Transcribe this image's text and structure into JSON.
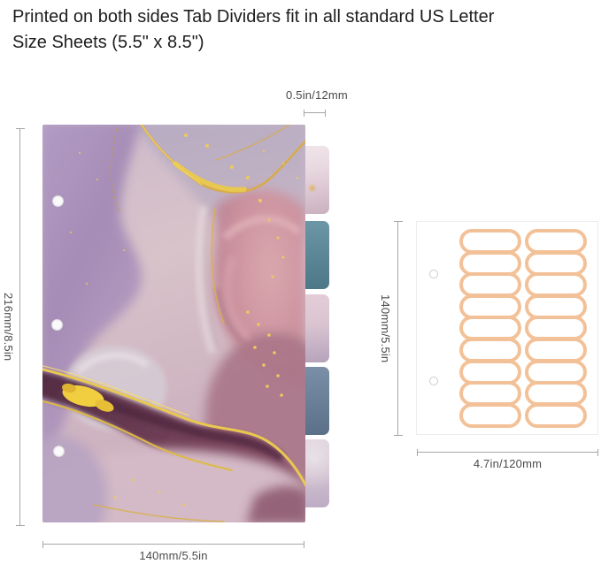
{
  "header": {
    "title": "Printed on both sides Tab Dividers fit in all standard US Letter Size Sheets (5.5\" x 8.5\")"
  },
  "divider": {
    "hole_count": 3,
    "tabs": [
      {
        "id": "tab-1",
        "style": "marble-front"
      },
      {
        "id": "tab-2",
        "style": "tab-solid",
        "color": "#57889a"
      },
      {
        "id": "tab-3",
        "style": "marble-pink"
      },
      {
        "id": "tab-4",
        "style": "tab-solid",
        "color": "#68809b"
      },
      {
        "id": "tab-5",
        "style": "marble-lavender"
      }
    ],
    "marble_palette": [
      "#a58cb6",
      "#d8c3ca",
      "#cb919e",
      "#6e3e55",
      "#e9c84f"
    ],
    "dimensions": {
      "tab_width": "0.5in/12mm",
      "height": "216mm/8.5in",
      "width": "140mm/5.5in"
    }
  },
  "sticker_sheet": {
    "hole_count": 2,
    "label_columns": 2,
    "labels_per_column": 9,
    "label_outline_color": "#f3c198",
    "dimensions": {
      "height": "140mm/5.5in",
      "width": "4.7in/120mm"
    }
  }
}
